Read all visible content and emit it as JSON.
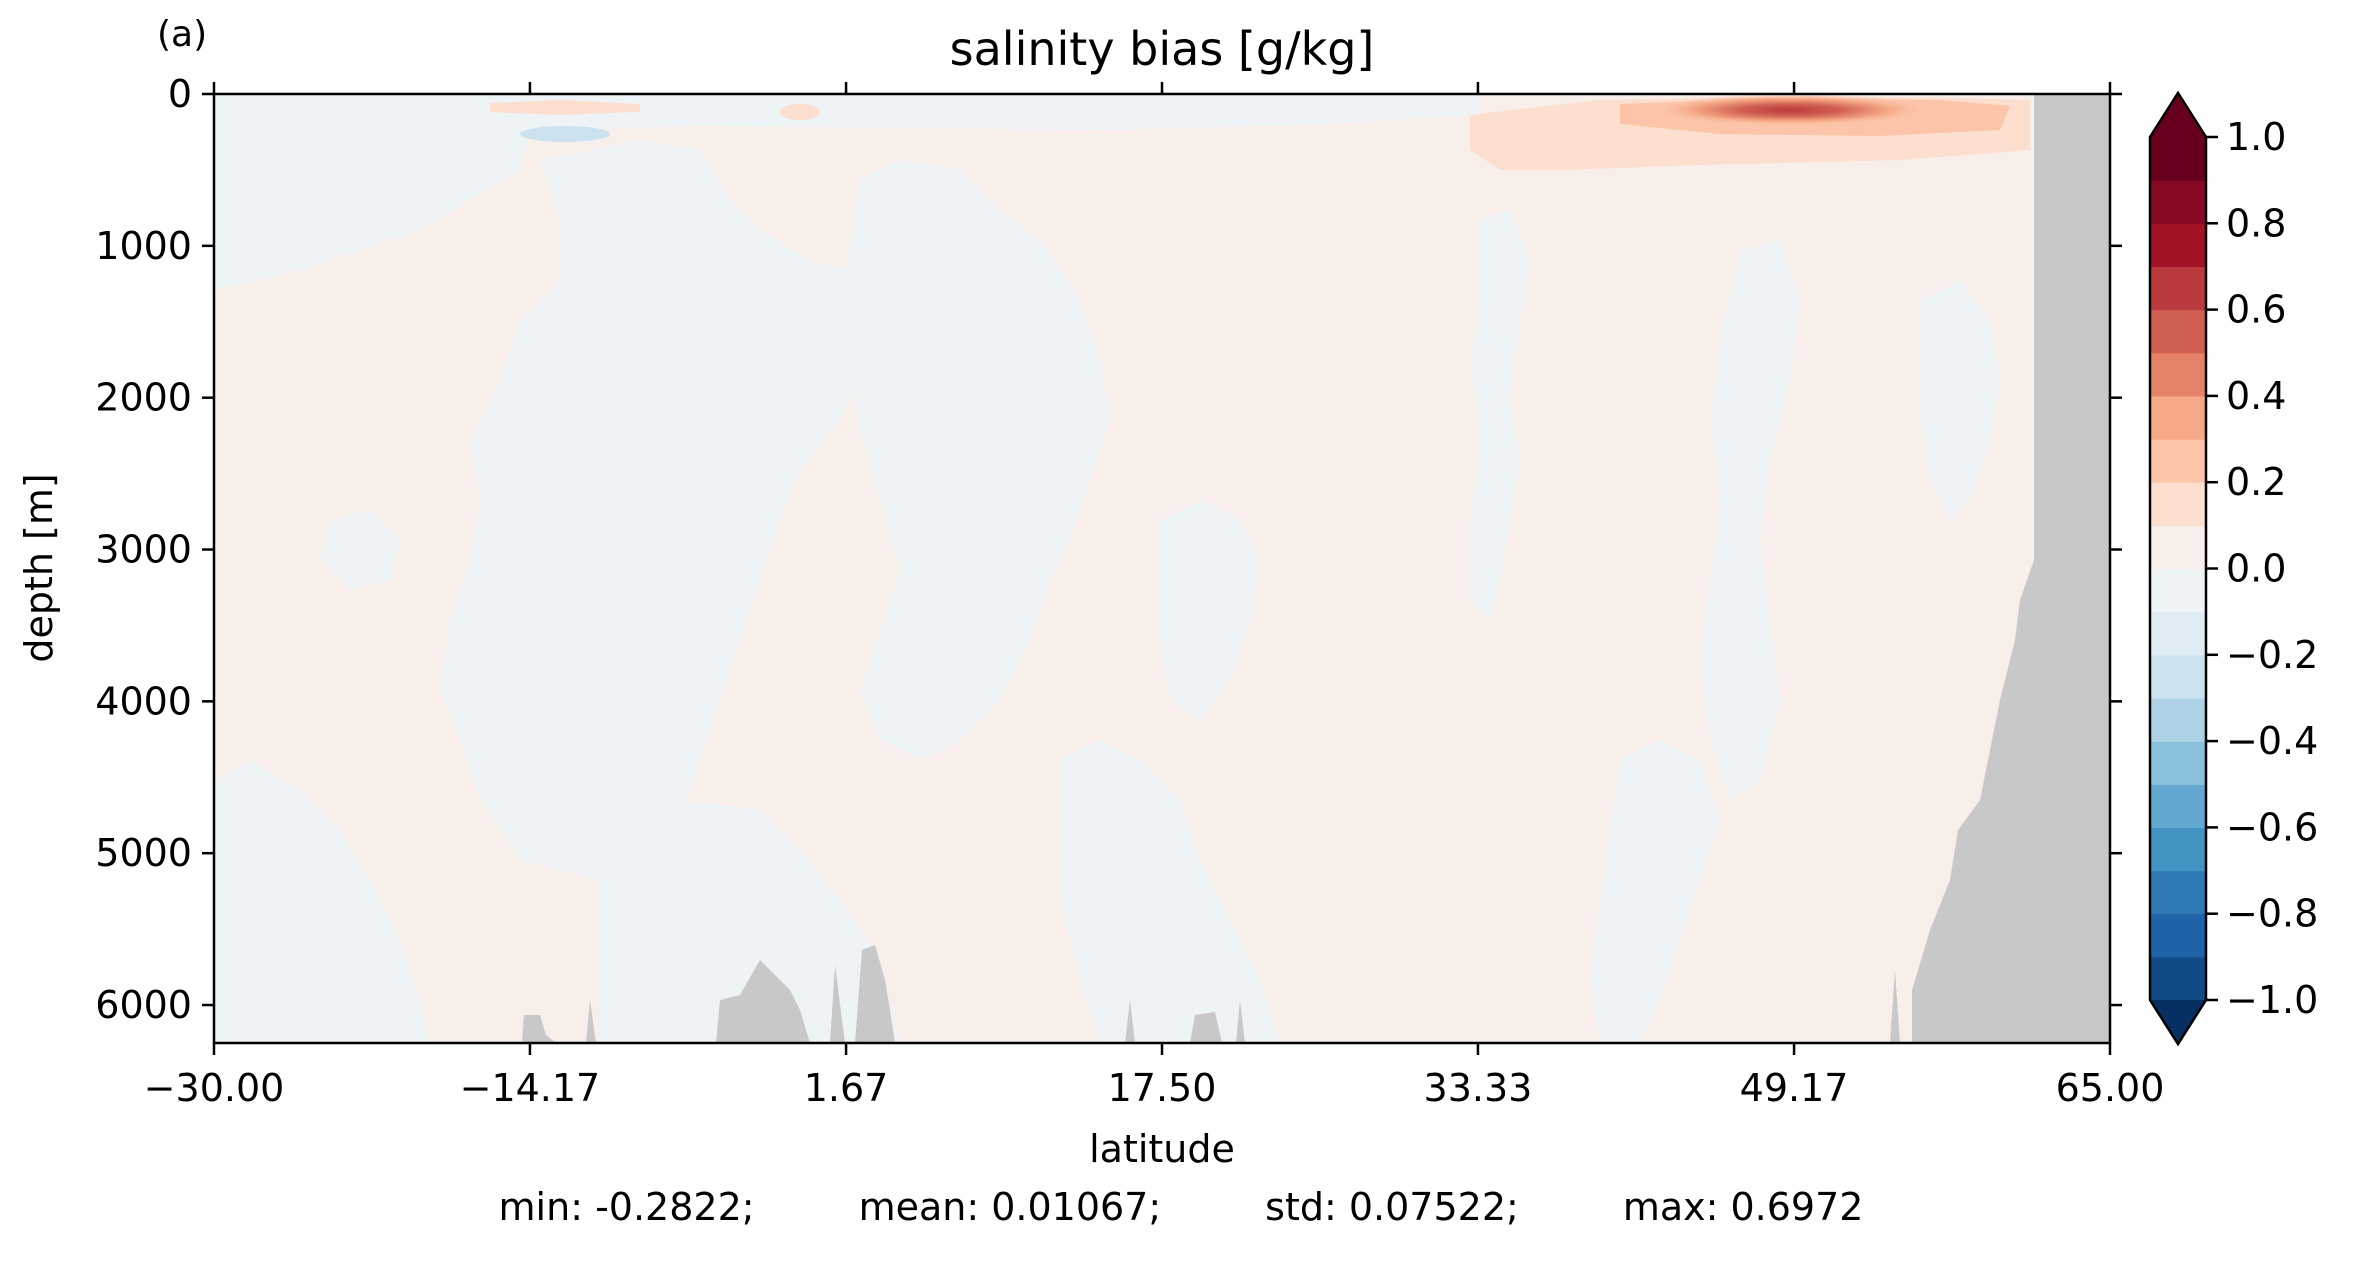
{
  "chart_data": {
    "type": "heatmap",
    "panel_label": "(a)",
    "title": "salinity bias [g/kg]",
    "xlabel": "latitude",
    "ylabel": "depth [m]",
    "xlim": [
      -30.0,
      65.0
    ],
    "ylim": [
      6250,
      0
    ],
    "y_inverted": true,
    "x_ticks": [
      -30.0,
      -14.17,
      1.67,
      17.5,
      33.33,
      49.17,
      65.0
    ],
    "x_tick_labels": [
      "−30.00",
      "−14.17",
      "1.67",
      "17.50",
      "33.33",
      "49.17",
      "65.00"
    ],
    "y_ticks": [
      0,
      1000,
      2000,
      3000,
      4000,
      5000,
      6000
    ],
    "y_tick_labels": [
      "0",
      "1000",
      "2000",
      "3000",
      "4000",
      "5000",
      "6000"
    ],
    "colorbar": {
      "vmin": -1.0,
      "vmax": 1.0,
      "levels": [
        -1.0,
        -0.9,
        -0.8,
        -0.7,
        -0.6,
        -0.5,
        -0.4,
        -0.3,
        -0.2,
        -0.1,
        0.0,
        0.1,
        0.2,
        0.3,
        0.4,
        0.5,
        0.6,
        0.7,
        0.8,
        0.9,
        1.0
      ],
      "colors": [
        "#134b87",
        "#1f63a8",
        "#2f79b5",
        "#4393c3",
        "#62a8d0",
        "#8ac0db",
        "#aed3e6",
        "#cce2ef",
        "#dfecf4",
        "#eef3f6",
        "#f8eeea",
        "#fcdfcf",
        "#fcc5aa",
        "#f6a886",
        "#e58268",
        "#d05f51",
        "#bb3a3d",
        "#a21328",
        "#870a24",
        "#67001f"
      ],
      "extend_low_color": "#053061",
      "extend_high_color": "#67001f",
      "ticks": [
        1.0,
        0.8,
        0.6,
        0.4,
        0.2,
        0.0,
        -0.2,
        -0.4,
        -0.6,
        -0.8,
        -1.0
      ],
      "tick_labels": [
        "1.0",
        "0.8",
        "0.6",
        "0.4",
        "0.2",
        "0.0",
        "−0.2",
        "−0.4",
        "−0.6",
        "−0.8",
        "−1.0"
      ]
    },
    "field_summary": {
      "background_bias": "≈0.0 to +0.1 over most of the section, with many near-zero negative patches",
      "max_feature": "positive bias near 0–250 m around 47–56°N, peaking at ≈0.7",
      "min_feature": "weak negative bias ≈−0.2 near 200–300 m around −14 to −8°"
    },
    "colors": {
      "land_mask": "#c8c8c8",
      "near_zero_negative": "#eef3f6",
      "near_zero_positive": "#f8eeea"
    }
  },
  "stats": {
    "min": "min: -0.2822;",
    "mean": "mean: 0.01067;",
    "std": "std: 0.07522;",
    "max": "max: 0.6972"
  }
}
